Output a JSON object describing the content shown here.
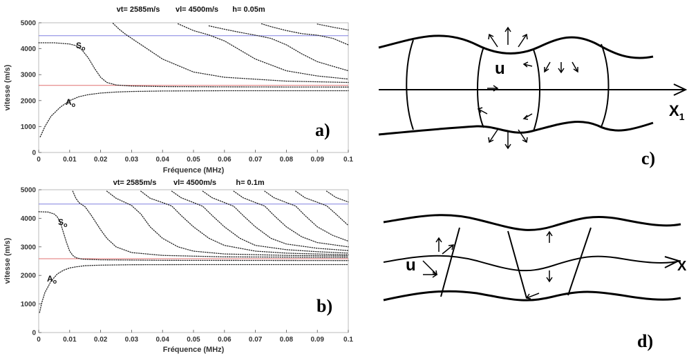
{
  "chart_data": [
    {
      "type": "line",
      "panel_label": "a)",
      "header": {
        "vt": "vt= 2585m/s",
        "vl": "vl= 4500m/s",
        "h": "h= 0.05m"
      },
      "xlabel": "Fréquence (MHz)",
      "ylabel": "vitesse (m/s)",
      "xlim": [
        0,
        0.1
      ],
      "ylim": [
        0,
        5000
      ],
      "xticks": [
        "0",
        "0.01",
        "0.02",
        "0.03",
        "0.04",
        "0.05",
        "0.06",
        "0.07",
        "0.08",
        "0.09",
        "0.1"
      ],
      "yticks": [
        "0",
        "1000",
        "2000",
        "3000",
        "4000",
        "5000"
      ],
      "reference_lines": [
        {
          "value": 4500,
          "color": "#8080e0"
        },
        {
          "value": 2585,
          "color": "#e07070"
        }
      ],
      "mode_labels": [
        {
          "main": "S",
          "sub": "o"
        },
        {
          "main": "A",
          "sub": "o"
        }
      ],
      "series": [
        {
          "x": [
            0.0005,
            0.002,
            0.004,
            0.007,
            0.01,
            0.013,
            0.016,
            0.02,
            0.025,
            0.03,
            0.04,
            0.05,
            0.06,
            0.07,
            0.08,
            0.09,
            0.1
          ],
          "y": [
            600,
            1000,
            1400,
            1750,
            2000,
            2150,
            2230,
            2290,
            2330,
            2350,
            2370,
            2375,
            2380,
            2380,
            2380,
            2380,
            2380
          ]
        },
        {
          "x": [
            0,
            0.005,
            0.01,
            0.012,
            0.014,
            0.016,
            0.018,
            0.02,
            0.022,
            0.025,
            0.03,
            0.04,
            0.06,
            0.08,
            0.1
          ],
          "y": [
            4230,
            4230,
            4180,
            4120,
            3950,
            3650,
            3250,
            2900,
            2700,
            2600,
            2560,
            2540,
            2530,
            2525,
            2520
          ]
        },
        {
          "x": [
            0.024,
            0.026,
            0.028,
            0.03,
            0.035,
            0.04,
            0.05,
            0.06,
            0.08,
            0.1
          ],
          "y": [
            4980,
            4750,
            4560,
            4400,
            4000,
            3600,
            3100,
            2900,
            2750,
            2700
          ]
        },
        {
          "x": [
            0.045,
            0.05,
            0.055,
            0.06,
            0.065,
            0.07,
            0.08,
            0.09,
            0.1
          ],
          "y": [
            4960,
            4700,
            4530,
            4300,
            3950,
            3600,
            3150,
            2950,
            2830
          ]
        },
        {
          "x": [
            0.055,
            0.06,
            0.065,
            0.07,
            0.075,
            0.08,
            0.085,
            0.09,
            0.1
          ],
          "y": [
            4880,
            4750,
            4630,
            4520,
            4400,
            4150,
            3800,
            3500,
            3150
          ]
        },
        {
          "x": [
            0.072,
            0.075,
            0.08,
            0.085,
            0.09,
            0.095,
            0.1
          ],
          "y": [
            4960,
            4850,
            4700,
            4580,
            4520,
            4400,
            4150
          ]
        },
        {
          "x": [
            0.09,
            0.095,
            0.1
          ],
          "y": [
            4950,
            4830,
            4720
          ]
        }
      ]
    },
    {
      "type": "line",
      "panel_label": "b)",
      "header": {
        "vt": "vt= 2585m/s",
        "vl": "vl= 4500m/s",
        "h": "h= 0.1m"
      },
      "xlabel": "Fréquence (MHz)",
      "ylabel": "vitesse (m/s)",
      "xlim": [
        0,
        0.1
      ],
      "ylim": [
        0,
        5000
      ],
      "xticks": [
        "0",
        "0.01",
        "0.02",
        "0.03",
        "0.04",
        "0.05",
        "0.06",
        "0.07",
        "0.08",
        "0.09",
        "0.1"
      ],
      "yticks": [
        "0",
        "1000",
        "2000",
        "3000",
        "4000",
        "5000"
      ],
      "reference_lines": [
        {
          "value": 4500,
          "color": "#8080e0"
        },
        {
          "value": 2585,
          "color": "#e07070"
        }
      ],
      "mode_labels": [
        {
          "main": "S",
          "sub": "o"
        },
        {
          "main": "A",
          "sub": "o"
        }
      ],
      "series": [
        {
          "x": [
            0.0003,
            0.001,
            0.002,
            0.004,
            0.006,
            0.008,
            0.01,
            0.012,
            0.015,
            0.02,
            0.03,
            0.05,
            0.07,
            0.1
          ],
          "y": [
            700,
            1050,
            1400,
            1800,
            2050,
            2180,
            2260,
            2300,
            2340,
            2360,
            2375,
            2380,
            2380,
            2380
          ]
        },
        {
          "x": [
            0,
            0.003,
            0.005,
            0.006,
            0.007,
            0.008,
            0.009,
            0.01,
            0.011,
            0.012,
            0.014,
            0.02,
            0.04,
            0.1
          ],
          "y": [
            4230,
            4220,
            4150,
            4050,
            3850,
            3500,
            3150,
            2850,
            2700,
            2620,
            2570,
            2545,
            2530,
            2520
          ]
        },
        {
          "x": [
            0.011,
            0.012,
            0.013,
            0.015,
            0.017,
            0.02,
            0.022,
            0.025,
            0.03,
            0.04,
            0.06,
            0.1
          ],
          "y": [
            4950,
            4700,
            4550,
            4400,
            4100,
            3600,
            3300,
            3000,
            2800,
            2700,
            2650,
            2630
          ]
        },
        {
          "x": [
            0.022,
            0.025,
            0.028,
            0.03,
            0.033,
            0.036,
            0.04,
            0.045,
            0.05,
            0.06,
            0.08,
            0.1
          ],
          "y": [
            4950,
            4700,
            4550,
            4450,
            4150,
            3700,
            3300,
            3000,
            2850,
            2750,
            2700,
            2680
          ]
        },
        {
          "x": [
            0.033,
            0.036,
            0.04,
            0.043,
            0.046,
            0.05,
            0.055,
            0.06,
            0.07,
            0.08,
            0.1
          ],
          "y": [
            4950,
            4700,
            4550,
            4430,
            4100,
            3700,
            3300,
            3050,
            2850,
            2780,
            2720
          ]
        },
        {
          "x": [
            0.043,
            0.046,
            0.05,
            0.053,
            0.056,
            0.06,
            0.065,
            0.07,
            0.08,
            0.09,
            0.1
          ],
          "y": [
            4950,
            4720,
            4550,
            4420,
            4100,
            3700,
            3300,
            3050,
            2900,
            2830,
            2780
          ]
        },
        {
          "x": [
            0.053,
            0.056,
            0.06,
            0.063,
            0.066,
            0.07,
            0.075,
            0.08,
            0.09,
            0.1
          ],
          "y": [
            4950,
            4720,
            4550,
            4420,
            4100,
            3700,
            3300,
            3100,
            2950,
            2870
          ]
        },
        {
          "x": [
            0.063,
            0.066,
            0.07,
            0.073,
            0.076,
            0.08,
            0.085,
            0.09,
            0.1
          ],
          "y": [
            4950,
            4720,
            4550,
            4430,
            4100,
            3700,
            3350,
            3150,
            3000
          ]
        },
        {
          "x": [
            0.073,
            0.076,
            0.08,
            0.083,
            0.086,
            0.09,
            0.095,
            0.1
          ],
          "y": [
            4950,
            4720,
            4550,
            4430,
            4100,
            3700,
            3400,
            3200
          ]
        },
        {
          "x": [
            0.083,
            0.086,
            0.09,
            0.093,
            0.096,
            0.1
          ],
          "y": [
            4950,
            4720,
            4560,
            4440,
            4150,
            3750
          ]
        },
        {
          "x": [
            0.093,
            0.096,
            0.1
          ],
          "y": [
            4950,
            4730,
            4570
          ]
        }
      ]
    }
  ],
  "diagrams": {
    "c": {
      "label": "c)",
      "arrow_label": "u",
      "axis_label": "X",
      "axis_sub": "1"
    },
    "d": {
      "label": "d)",
      "arrow_label": "u",
      "axis_label": "X"
    }
  }
}
